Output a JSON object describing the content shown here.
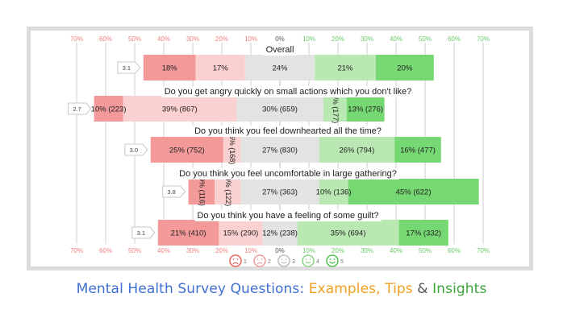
{
  "caption": {
    "part1": "Mental Health Survey Questions: ",
    "part2": "Examples, Tips",
    "part3": " & ",
    "part4": "Insights",
    "colors": {
      "part1": "#3f6fd1",
      "part2": "#f0a020",
      "part3": "#555555",
      "part4": "#3aa63a"
    }
  },
  "chart_data": {
    "type": "bar",
    "subtype": "diverging-stacked-likert",
    "x_ticks_top": [
      "70%",
      "60%",
      "50%",
      "40%",
      "30%",
      "20%",
      "10%",
      "0%",
      "10%",
      "20%",
      "30%",
      "40%",
      "50%",
      "60%",
      "70%"
    ],
    "x_ticks_bottom": [
      "70%",
      "60%",
      "50%",
      "40%",
      "30%",
      "20%",
      "10%",
      "0%",
      "10%",
      "20%",
      "30%",
      "40%",
      "50%",
      "60%",
      "70%"
    ],
    "tick_colors": {
      "negative": "#f08080",
      "zero": "#555555",
      "positive": "#6cc96c"
    },
    "xlim": [
      -70,
      70
    ],
    "grid": true,
    "categories": [
      "1",
      "2",
      "3",
      "4",
      "5"
    ],
    "colors": [
      "#f4999a",
      "#fbd0d0",
      "#e3e3e3",
      "#b9e8b3",
      "#76d873"
    ],
    "rows": [
      {
        "title": "Overall",
        "score": "3.1",
        "values": [
          18,
          17,
          24,
          21,
          20
        ],
        "labels": [
          "18%",
          "17%",
          "24%",
          "21%",
          "20%"
        ],
        "vertical": [
          false,
          false,
          false,
          false,
          false
        ]
      },
      {
        "title": "Do you get angry quickly on small actions which you don't like?",
        "score": "2.7",
        "values": [
          10,
          39,
          30,
          8,
          13
        ],
        "labels": [
          "10% (223)",
          "39% (867)",
          "30% (659)",
          "8% (177)",
          "13% (276)"
        ],
        "vertical": [
          false,
          false,
          false,
          true,
          false
        ]
      },
      {
        "title": "Do you think you feel downhearted all the time?",
        "score": "3.0",
        "values": [
          25,
          6,
          27,
          26,
          16
        ],
        "labels": [
          "25% (752)",
          "6% (168)",
          "27% (830)",
          "26% (794)",
          "16% (477)"
        ],
        "vertical": [
          false,
          true,
          false,
          false,
          false
        ]
      },
      {
        "title": "Do you think you feel uncomfortable in large gathering?",
        "score": "3.8",
        "values": [
          9,
          9,
          27,
          10,
          45
        ],
        "labels": [
          "9% (116)",
          "9% (122)",
          "27% (363)",
          "10% (136)",
          "45% (622)"
        ],
        "vertical": [
          true,
          true,
          false,
          false,
          false
        ]
      },
      {
        "title": "Do you think you have a feeling of some guilt?",
        "score": "3.1",
        "values": [
          21,
          15,
          12,
          35,
          17
        ],
        "labels": [
          "21% (410)",
          "15% (290)",
          "12% (238)",
          "35% (694)",
          "17% (332)"
        ],
        "vertical": [
          false,
          false,
          false,
          false,
          false
        ]
      }
    ],
    "legend": {
      "position": "bottom-center",
      "items": [
        {
          "label": "1",
          "icon": "very-sad-face-icon",
          "color": "#e36a6a"
        },
        {
          "label": "2",
          "icon": "sad-face-icon",
          "color": "#f0a0a0"
        },
        {
          "label": "3",
          "icon": "neutral-face-icon",
          "color": "#c0c0c0"
        },
        {
          "label": "4",
          "icon": "smile-face-icon",
          "color": "#8fd68b"
        },
        {
          "label": "5",
          "icon": "happy-face-icon",
          "color": "#55c552"
        }
      ]
    }
  }
}
